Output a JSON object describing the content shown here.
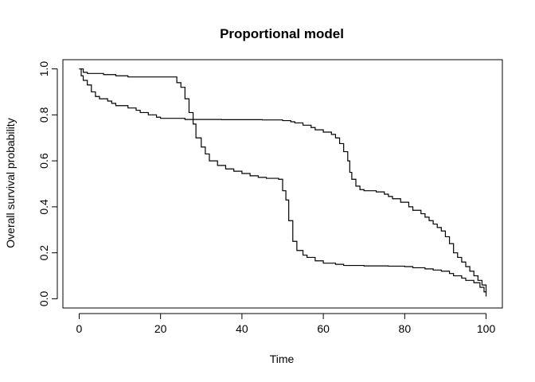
{
  "chart_data": {
    "type": "line",
    "step": true,
    "title": "Proportional model",
    "xlabel": "Time",
    "ylabel": "Overall survival probability",
    "xlim": [
      -4,
      104
    ],
    "ylim": [
      -0.04,
      1.04
    ],
    "xticks": [
      0,
      20,
      40,
      60,
      80,
      100
    ],
    "yticks": [
      0.0,
      0.2,
      0.4,
      0.6,
      0.8,
      1.0
    ],
    "yticklabels": [
      "0.0",
      "0.2",
      "0.4",
      "0.6",
      "0.8",
      "1.0"
    ],
    "grid": false,
    "legend": "none",
    "line_color": "#000000",
    "series": [
      {
        "points": [
          [
            0,
            1.0
          ],
          [
            1,
            0.985
          ],
          [
            2,
            0.98
          ],
          [
            6,
            0.975
          ],
          [
            9,
            0.97
          ],
          [
            12,
            0.965
          ],
          [
            24,
            0.94
          ],
          [
            25,
            0.92
          ],
          [
            26,
            0.87
          ],
          [
            27,
            0.81
          ],
          [
            28,
            0.76
          ],
          [
            28.7,
            0.7
          ],
          [
            30,
            0.66
          ],
          [
            31,
            0.63
          ],
          [
            32,
            0.6
          ],
          [
            34,
            0.58
          ],
          [
            36,
            0.565
          ],
          [
            38,
            0.555
          ],
          [
            40,
            0.545
          ],
          [
            42,
            0.535
          ],
          [
            44,
            0.528
          ],
          [
            46,
            0.524
          ],
          [
            49,
            0.52
          ],
          [
            50,
            0.47
          ],
          [
            50.8,
            0.43
          ],
          [
            51.5,
            0.34
          ],
          [
            52.5,
            0.25
          ],
          [
            53.5,
            0.21
          ],
          [
            55,
            0.19
          ],
          [
            56,
            0.18
          ],
          [
            58,
            0.165
          ],
          [
            60,
            0.155
          ],
          [
            63,
            0.15
          ],
          [
            65,
            0.145
          ],
          [
            70,
            0.143
          ],
          [
            76,
            0.142
          ],
          [
            80,
            0.14
          ],
          [
            82,
            0.135
          ],
          [
            85,
            0.13
          ],
          [
            87,
            0.125
          ],
          [
            89,
            0.12
          ],
          [
            91,
            0.11
          ],
          [
            92,
            0.1
          ],
          [
            94,
            0.09
          ],
          [
            95,
            0.08
          ],
          [
            97,
            0.07
          ],
          [
            98.5,
            0.05
          ],
          [
            99.5,
            0.03
          ],
          [
            100,
            0.01
          ]
        ]
      },
      {
        "points": [
          [
            0,
            1.0
          ],
          [
            0.5,
            0.97
          ],
          [
            1,
            0.95
          ],
          [
            2,
            0.93
          ],
          [
            3,
            0.9
          ],
          [
            4,
            0.88
          ],
          [
            5,
            0.87
          ],
          [
            7,
            0.86
          ],
          [
            8,
            0.85
          ],
          [
            9,
            0.84
          ],
          [
            12,
            0.83
          ],
          [
            14,
            0.82
          ],
          [
            15,
            0.81
          ],
          [
            17,
            0.8
          ],
          [
            19,
            0.79
          ],
          [
            20,
            0.785
          ],
          [
            26,
            0.78
          ],
          [
            35,
            0.779
          ],
          [
            45,
            0.778
          ],
          [
            50,
            0.775
          ],
          [
            52,
            0.77
          ],
          [
            53,
            0.765
          ],
          [
            55,
            0.755
          ],
          [
            57,
            0.745
          ],
          [
            58,
            0.735
          ],
          [
            60,
            0.725
          ],
          [
            62,
            0.715
          ],
          [
            63,
            0.7
          ],
          [
            64,
            0.675
          ],
          [
            65,
            0.64
          ],
          [
            66,
            0.6
          ],
          [
            66.5,
            0.55
          ],
          [
            67,
            0.52
          ],
          [
            68,
            0.49
          ],
          [
            69,
            0.475
          ],
          [
            70,
            0.47
          ],
          [
            73,
            0.465
          ],
          [
            75,
            0.455
          ],
          [
            76,
            0.445
          ],
          [
            77,
            0.435
          ],
          [
            79,
            0.42
          ],
          [
            81,
            0.4
          ],
          [
            82,
            0.385
          ],
          [
            84,
            0.37
          ],
          [
            85,
            0.355
          ],
          [
            86,
            0.34
          ],
          [
            87,
            0.325
          ],
          [
            88,
            0.31
          ],
          [
            89,
            0.295
          ],
          [
            90,
            0.27
          ],
          [
            91,
            0.24
          ],
          [
            92,
            0.2
          ],
          [
            93,
            0.18
          ],
          [
            94,
            0.16
          ],
          [
            95,
            0.14
          ],
          [
            96,
            0.12
          ],
          [
            97,
            0.1
          ],
          [
            98,
            0.08
          ],
          [
            99,
            0.06
          ],
          [
            100,
            0.03
          ]
        ]
      }
    ]
  }
}
